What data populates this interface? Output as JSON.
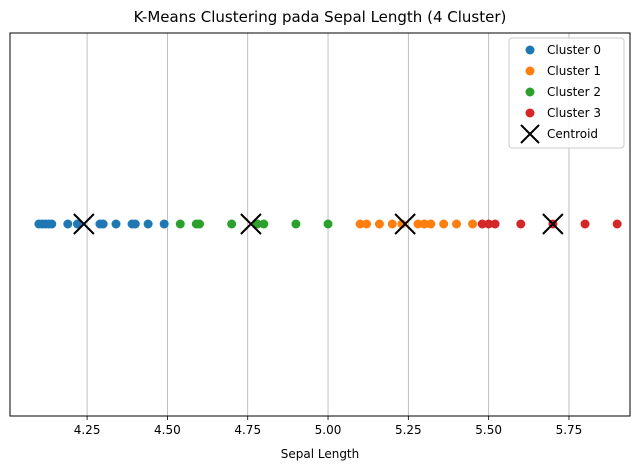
{
  "chart_data": {
    "type": "scatter",
    "title": "K-Means Clustering pada Sepal Length (4 Cluster)",
    "xlabel": "Sepal Length",
    "ylabel": "",
    "xlim": [
      4.01,
      5.94
    ],
    "xticks": [
      "4.25",
      "4.50",
      "4.75",
      "5.00",
      "5.25",
      "5.50",
      "5.75"
    ],
    "grid": "vertical",
    "legend": "top-right",
    "series": [
      {
        "name": "Cluster 0",
        "color": "#1f77b4",
        "x": [
          4.1,
          4.11,
          4.12,
          4.13,
          4.14,
          4.19,
          4.22,
          4.29,
          4.3,
          4.34,
          4.39,
          4.4,
          4.44,
          4.49
        ]
      },
      {
        "name": "Cluster 1",
        "color": "#ff7f0e",
        "x": [
          5.1,
          5.12,
          5.16,
          5.2,
          5.23,
          5.28,
          5.3,
          5.32,
          5.36,
          5.4,
          5.45
        ]
      },
      {
        "name": "Cluster 2",
        "color": "#2ca02c",
        "x": [
          4.54,
          4.59,
          4.6,
          4.7,
          4.78,
          4.8,
          4.9,
          5.0
        ]
      },
      {
        "name": "Cluster 3",
        "color": "#d62728",
        "x": [
          5.48,
          5.5,
          5.52,
          5.6,
          5.7,
          5.8,
          5.9
        ]
      }
    ],
    "centroids": {
      "name": "Centroid",
      "color": "#000000",
      "x": [
        4.24,
        4.76,
        5.24,
        5.7
      ]
    }
  }
}
